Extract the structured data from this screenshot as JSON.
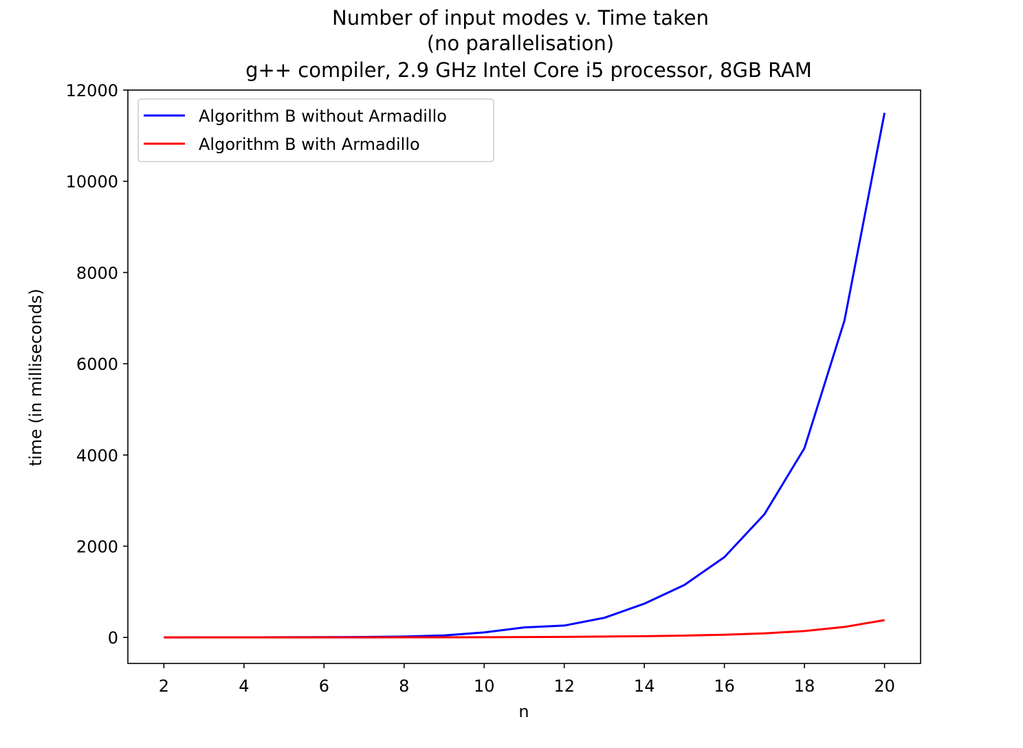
{
  "chart_data": {
    "type": "line",
    "title": [
      "Number of input modes v. Time taken",
      "(no parallelisation)",
      "g++ compiler, 2.9 GHz Intel Core i5 processor, 8GB RAM"
    ],
    "xlabel": "n",
    "ylabel": "time (in milliseconds)",
    "xlim": [
      1.1,
      20.9
    ],
    "ylim": [
      -570,
      12000
    ],
    "xticks": [
      2,
      4,
      6,
      8,
      10,
      12,
      14,
      16,
      18,
      20
    ],
    "yticks": [
      0,
      2000,
      4000,
      6000,
      8000,
      10000,
      12000
    ],
    "grid": false,
    "legend_position": "top-left",
    "x": [
      2,
      3,
      4,
      5,
      6,
      7,
      8,
      9,
      10,
      11,
      12,
      13,
      14,
      15,
      16,
      17,
      18,
      19,
      20
    ],
    "series": [
      {
        "name": "Algorithm B without Armadillo",
        "color": "#0000ff",
        "values": [
          1,
          2,
          3,
          4,
          6,
          10,
          20,
          45,
          110,
          220,
          260,
          430,
          740,
          1150,
          1760,
          2700,
          4150,
          6950,
          11500
        ]
      },
      {
        "name": "Algorithm B with Armadillo",
        "color": "#ff0000",
        "values": [
          0,
          0,
          0,
          0,
          1,
          1,
          2,
          3,
          5,
          8,
          12,
          20,
          28,
          40,
          60,
          90,
          140,
          230,
          380
        ]
      }
    ]
  }
}
